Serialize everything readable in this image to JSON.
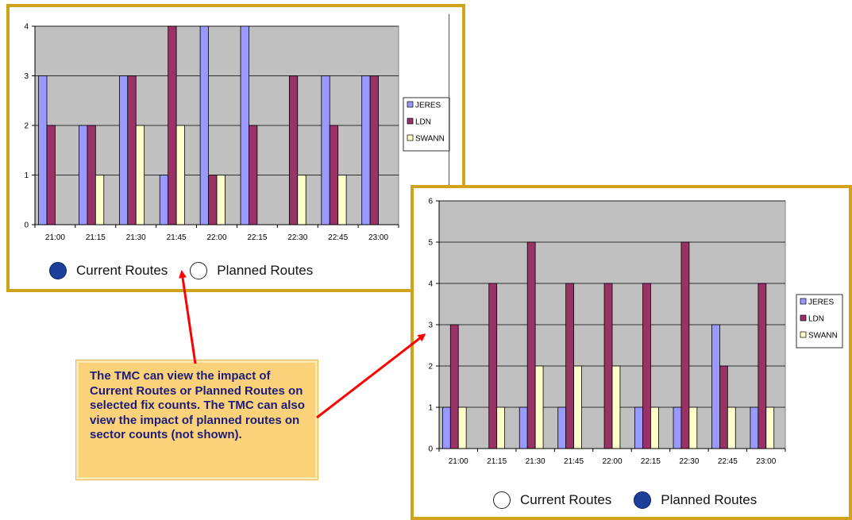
{
  "colors": {
    "jeres": "#9999ff",
    "ldn": "#993366",
    "swann": "#ffffcc",
    "plot_bg": "#c0c0c0",
    "border": "#d1a21c",
    "radio_on": "#1b3f9b",
    "arrow": "#ff0000",
    "callout_bg": "#fbd27a",
    "callout_text": "#1c1c7a"
  },
  "callout": {
    "text": "The TMC can view the impact of Current Routes or Planned Routes on selected fix counts. The TMC can also view the impact of planned routes on sector counts (not shown)."
  },
  "panel1": {
    "radios": [
      {
        "label": "Current Routes",
        "selected": true
      },
      {
        "label": "Planned Routes",
        "selected": false
      }
    ]
  },
  "panel2": {
    "radios": [
      {
        "label": "Current Routes",
        "selected": false
      },
      {
        "label": "Planned Routes",
        "selected": true
      }
    ]
  },
  "chart_data": [
    {
      "type": "bar",
      "categories": [
        "21:00",
        "21:15",
        "21:30",
        "21:45",
        "22:00",
        "22:15",
        "22:30",
        "22:45",
        "23:00"
      ],
      "ylim": [
        0,
        4
      ],
      "yticks": [
        0,
        1,
        2,
        3,
        4
      ],
      "grid": true,
      "legend": "right",
      "series": [
        {
          "name": "JERES",
          "values": [
            3,
            2,
            3,
            1,
            4,
            4,
            0,
            3,
            3
          ]
        },
        {
          "name": "LDN",
          "values": [
            2,
            2,
            3,
            4,
            1,
            2,
            3,
            2,
            3
          ]
        },
        {
          "name": "SWANN",
          "values": [
            0,
            1,
            2,
            2,
            1,
            0,
            1,
            1,
            0
          ]
        }
      ]
    },
    {
      "type": "bar",
      "categories": [
        "21:00",
        "21:15",
        "21:30",
        "21:45",
        "22:00",
        "22:15",
        "22:30",
        "22:45",
        "23:00"
      ],
      "ylim": [
        0,
        6
      ],
      "yticks": [
        0,
        1,
        2,
        3,
        4,
        5,
        6
      ],
      "grid": true,
      "legend": "right",
      "series": [
        {
          "name": "JERES",
          "values": [
            1,
            0,
            1,
            1,
            0,
            1,
            1,
            3,
            1
          ]
        },
        {
          "name": "LDN",
          "values": [
            3,
            4,
            5,
            4,
            4,
            4,
            5,
            2,
            4
          ]
        },
        {
          "name": "SWANN",
          "values": [
            1,
            1,
            2,
            2,
            2,
            1,
            1,
            1,
            1
          ]
        }
      ]
    }
  ]
}
